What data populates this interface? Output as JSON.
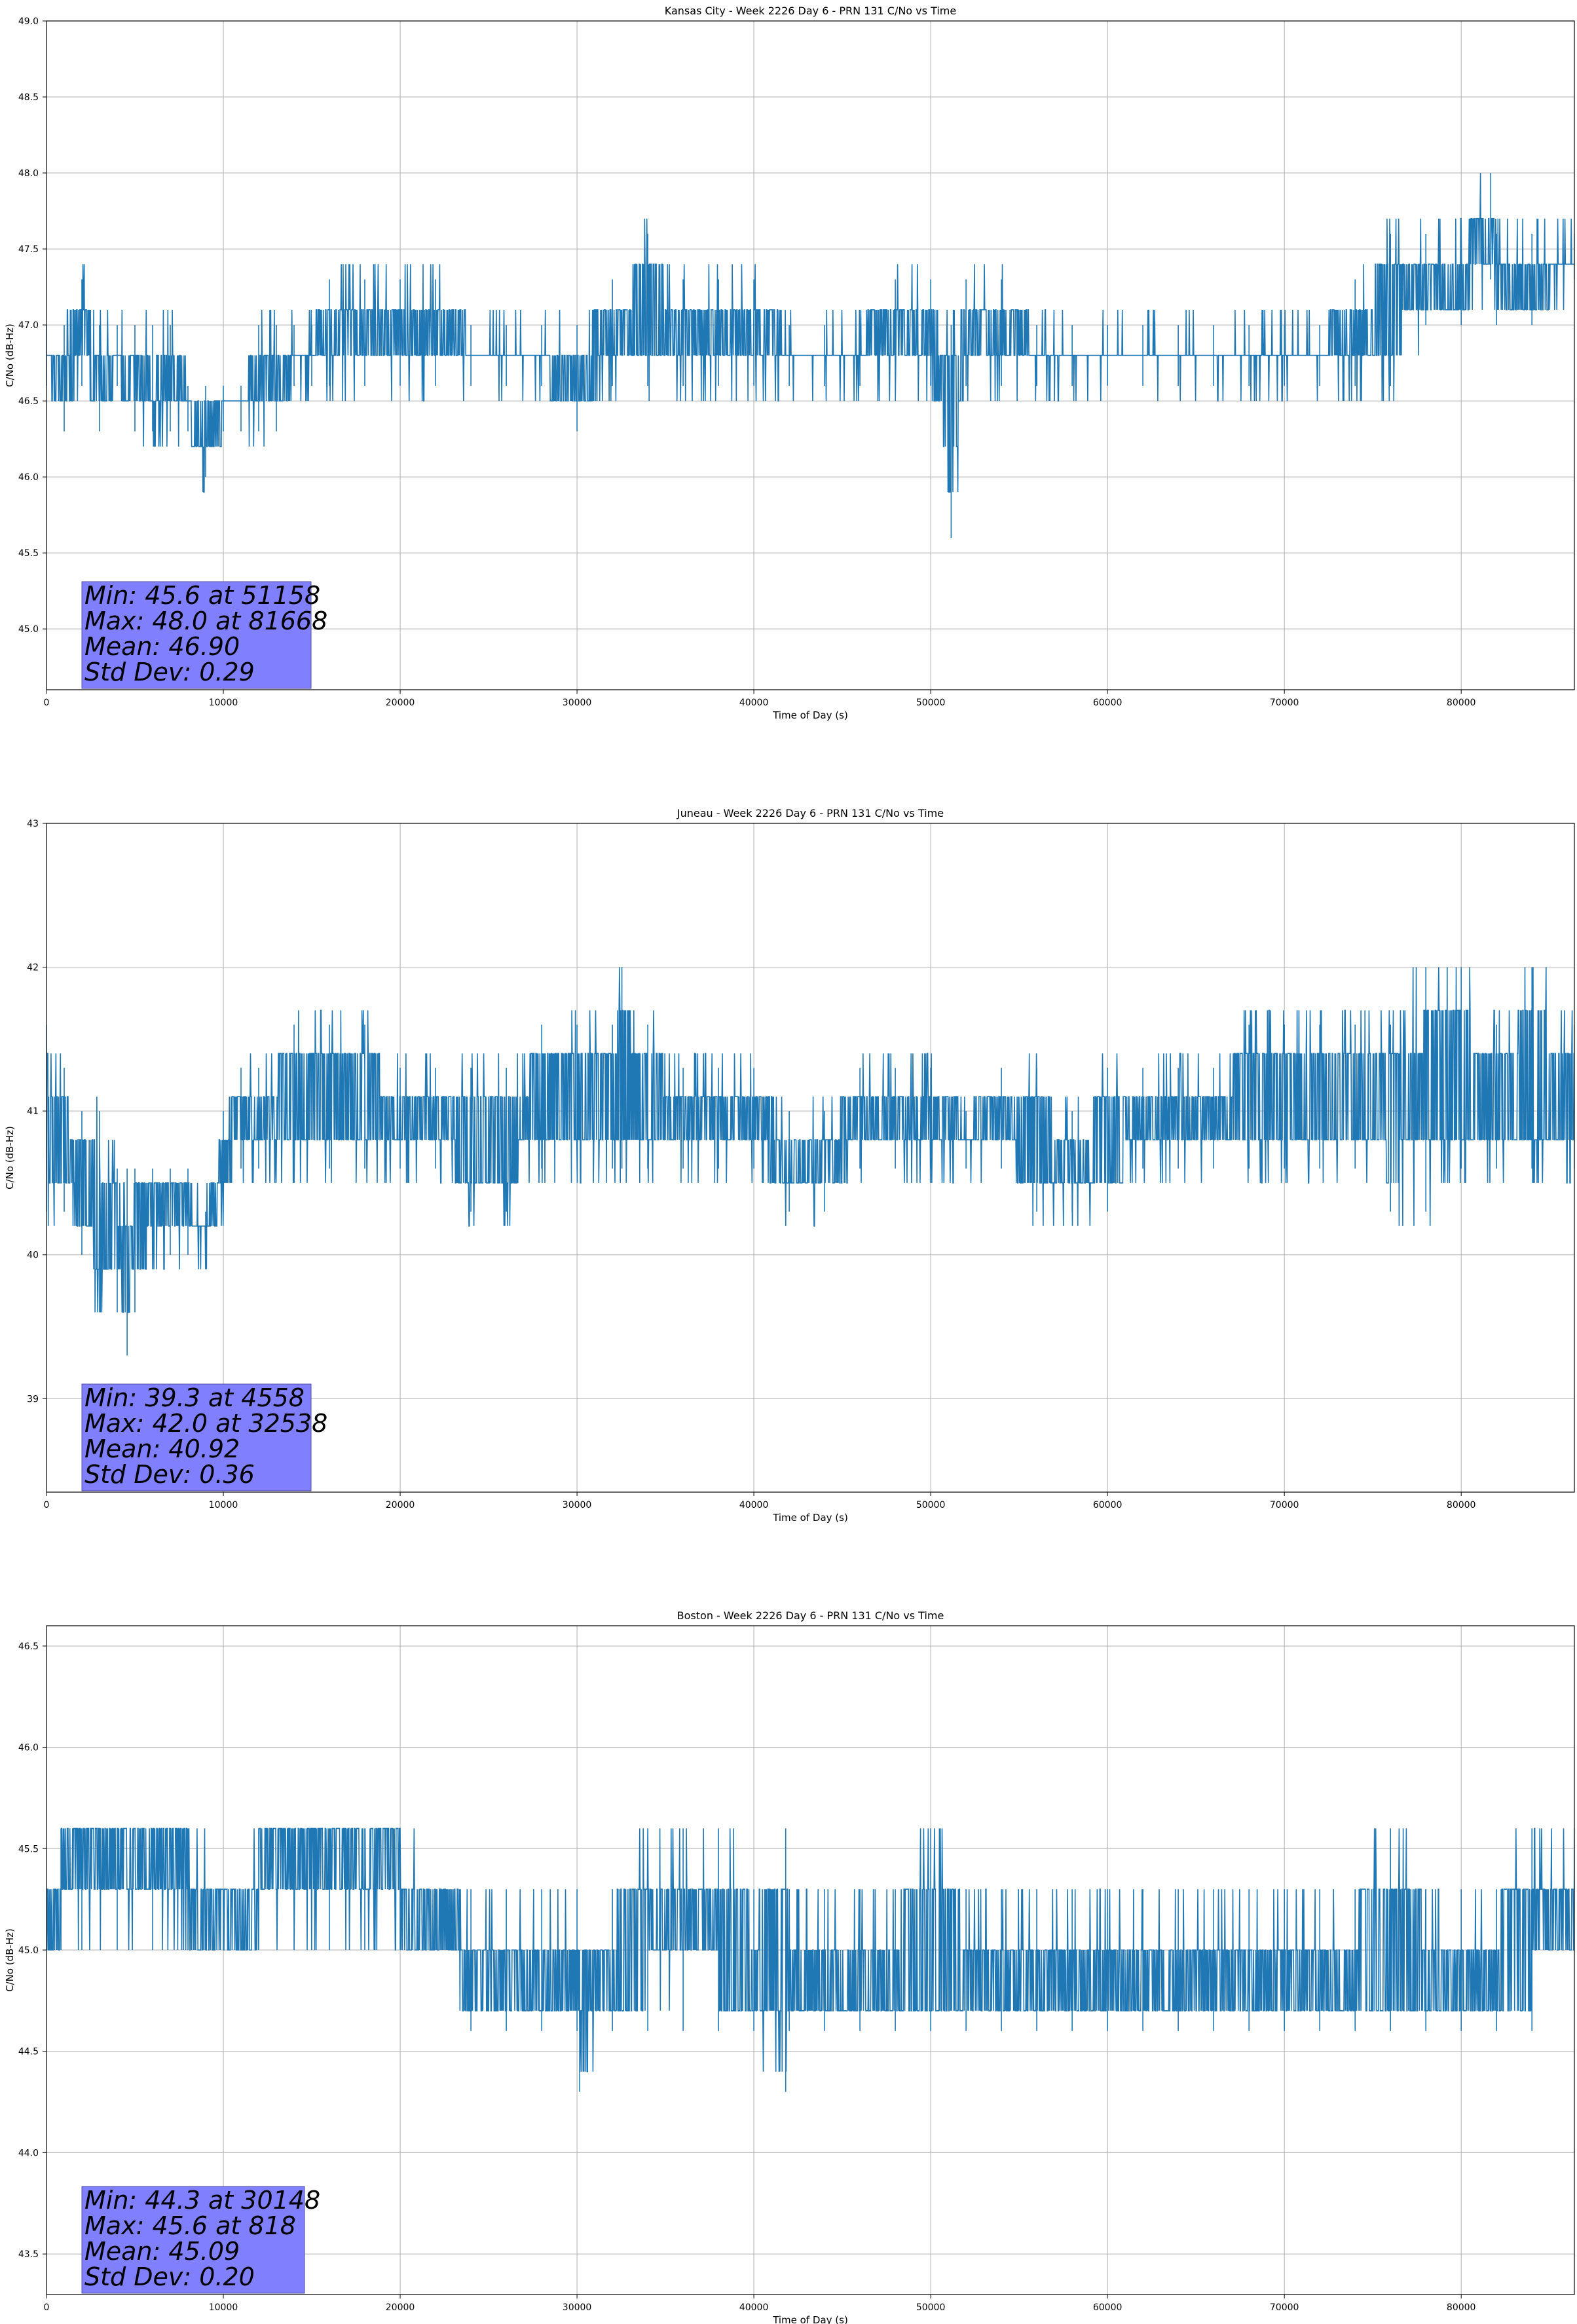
{
  "chart_data": [
    {
      "type": "line",
      "title": "Kansas City - Week 2226 Day 6 - PRN 131 C/No vs Time",
      "xlabel": "Time of Day (s)",
      "ylabel": "C/No (dB-Hz)",
      "xlim": [
        0,
        86400
      ],
      "ylim": [
        44.6,
        49.0
      ],
      "xticks": [
        0,
        10000,
        20000,
        30000,
        40000,
        50000,
        60000,
        70000,
        80000
      ],
      "yticks": [
        45.0,
        45.5,
        46.0,
        46.5,
        47.0,
        47.5,
        48.0,
        48.5,
        49.0
      ],
      "ytick_labels": [
        "45.0",
        "45.5",
        "46.0",
        "46.5",
        "47.0",
        "47.5",
        "48.0",
        "48.5",
        "49.0"
      ],
      "grid": true,
      "series_color": "#1f77b4",
      "series": [
        {
          "x": [
            0,
            1000,
            2000,
            3000,
            4000,
            5000,
            6000,
            7000,
            8000,
            9000,
            10000,
            11000,
            12000,
            13000,
            14000,
            15000,
            16000,
            18000,
            20000,
            22000,
            24000,
            26000,
            28000,
            30000,
            32000,
            34000,
            36000,
            38000,
            40000,
            42000,
            44000,
            46000,
            48000,
            50000,
            51158,
            52000,
            54000,
            56000,
            58000,
            60000,
            62000,
            64000,
            66000,
            68000,
            70000,
            72000,
            74000,
            76000,
            78000,
            80000,
            81668,
            82000,
            84000,
            86400
          ],
          "y_low": [
            46.6,
            46.3,
            46.6,
            46.3,
            46.6,
            46.3,
            46.3,
            46.3,
            46.3,
            46.0,
            46.3,
            46.3,
            46.3,
            46.3,
            46.6,
            46.6,
            46.6,
            46.6,
            46.6,
            46.6,
            46.6,
            46.6,
            46.6,
            46.3,
            46.6,
            46.6,
            46.6,
            46.6,
            46.6,
            46.6,
            46.6,
            46.6,
            46.6,
            46.6,
            45.6,
            46.6,
            46.6,
            46.6,
            46.6,
            46.6,
            46.6,
            46.6,
            46.6,
            46.6,
            46.6,
            46.6,
            46.6,
            46.6,
            47.0,
            47.0,
            47.3,
            47.0,
            47.0,
            47.3
          ],
          "y_high": [
            47.0,
            47.0,
            47.3,
            47.0,
            47.0,
            47.0,
            47.0,
            47.0,
            46.6,
            46.6,
            46.6,
            46.6,
            47.0,
            47.0,
            47.0,
            47.0,
            47.3,
            47.3,
            47.3,
            47.3,
            47.0,
            47.0,
            47.0,
            47.0,
            47.3,
            47.6,
            47.3,
            47.3,
            47.3,
            47.0,
            47.0,
            47.0,
            47.3,
            47.3,
            47.0,
            47.3,
            47.3,
            47.0,
            47.0,
            47.0,
            47.0,
            47.0,
            47.0,
            47.0,
            47.0,
            47.0,
            47.3,
            47.6,
            47.6,
            47.6,
            48.0,
            47.6,
            47.6,
            47.6
          ]
        }
      ],
      "stats": {
        "min": "Min: 45.6 at 51158",
        "max": "Max: 48.0 at 81668",
        "mean": "Mean: 46.90",
        "std": "Std Dev: 0.29"
      }
    },
    {
      "type": "line",
      "title": "Juneau - Week 2226 Day 6 - PRN 131 C/No vs Time",
      "xlabel": "Time of Day (s)",
      "ylabel": "C/No (dB-Hz)",
      "xlim": [
        0,
        86400
      ],
      "ylim": [
        38.35,
        43.0
      ],
      "xticks": [
        0,
        10000,
        20000,
        30000,
        40000,
        50000,
        60000,
        70000,
        80000
      ],
      "yticks": [
        39,
        40,
        41,
        42,
        43
      ],
      "ytick_labels": [
        "39",
        "40",
        "41",
        "42",
        "43"
      ],
      "grid": true,
      "series_color": "#1f77b4",
      "series": [
        {
          "x": [
            0,
            1000,
            2000,
            3000,
            4000,
            4558,
            5000,
            6000,
            7000,
            8000,
            9000,
            10000,
            11000,
            12000,
            14000,
            16000,
            18000,
            20000,
            22000,
            24000,
            26000,
            28000,
            30000,
            32000,
            32538,
            34000,
            36000,
            38000,
            40000,
            42000,
            44000,
            46000,
            48000,
            50000,
            52000,
            54000,
            56000,
            58000,
            60000,
            62000,
            64000,
            66000,
            68000,
            70000,
            72000,
            74000,
            76000,
            78000,
            80000,
            82000,
            84000,
            86400
          ],
          "y_low": [
            40.3,
            40.3,
            40.0,
            39.6,
            39.6,
            39.3,
            39.6,
            40.0,
            40.0,
            40.0,
            40.0,
            40.3,
            40.6,
            40.6,
            40.6,
            40.6,
            40.6,
            40.6,
            40.6,
            40.3,
            40.3,
            40.6,
            40.6,
            40.6,
            40.6,
            40.6,
            40.6,
            40.6,
            40.6,
            40.3,
            40.3,
            40.6,
            40.6,
            40.6,
            40.6,
            40.6,
            40.3,
            40.3,
            40.3,
            40.6,
            40.6,
            40.6,
            40.6,
            40.6,
            40.6,
            40.6,
            40.3,
            40.3,
            40.6,
            40.6,
            40.6,
            40.6
          ],
          "y_high": [
            41.6,
            41.3,
            41.0,
            41.0,
            40.6,
            40.6,
            40.6,
            40.6,
            40.6,
            40.6,
            40.3,
            41.0,
            41.3,
            41.3,
            41.6,
            41.6,
            41.6,
            41.3,
            41.3,
            41.3,
            41.3,
            41.6,
            41.6,
            41.6,
            42.0,
            41.6,
            41.3,
            41.3,
            41.3,
            41.0,
            41.0,
            41.3,
            41.3,
            41.3,
            41.0,
            41.3,
            41.3,
            41.0,
            41.3,
            41.3,
            41.3,
            41.3,
            41.6,
            41.6,
            41.6,
            41.6,
            41.6,
            42.0,
            42.0,
            41.6,
            42.0,
            41.6
          ]
        }
      ],
      "stats": {
        "min": "Min: 39.3 at 4558",
        "max": "Max: 42.0 at 32538",
        "mean": "Mean: 40.92",
        "std": "Std Dev: 0.36"
      }
    },
    {
      "type": "line",
      "title": "Boston - Week 2226 Day 6 - PRN 131 C/No vs Time",
      "xlabel": "Time of Day (s)",
      "ylabel": "C/No (dB-Hz)",
      "xlim": [
        0,
        86400
      ],
      "ylim": [
        43.3,
        46.6
      ],
      "xticks": [
        0,
        10000,
        20000,
        30000,
        40000,
        50000,
        60000,
        70000,
        80000
      ],
      "yticks": [
        43.5,
        44.0,
        44.5,
        45.0,
        45.5,
        46.0,
        46.5
      ],
      "ytick_labels": [
        "43.5",
        "44.0",
        "44.5",
        "45.0",
        "45.5",
        "46.0",
        "46.5"
      ],
      "grid": true,
      "series_color": "#1f77b4",
      "series": [
        {
          "x": [
            0,
            818,
            2000,
            4000,
            6000,
            8000,
            10000,
            12000,
            14000,
            16000,
            18000,
            20000,
            22000,
            24000,
            26000,
            28000,
            30000,
            30148,
            32000,
            34000,
            36000,
            38000,
            40000,
            41800,
            42000,
            44000,
            46000,
            48000,
            50000,
            52000,
            54000,
            56000,
            58000,
            60000,
            62000,
            64000,
            66000,
            68000,
            70000,
            72000,
            74000,
            76000,
            78000,
            80000,
            82000,
            84000,
            86400
          ],
          "y_low": [
            45.0,
            45.0,
            45.0,
            45.0,
            45.0,
            45.0,
            45.0,
            45.0,
            45.0,
            45.0,
            45.0,
            45.0,
            45.0,
            44.6,
            44.6,
            44.6,
            44.6,
            44.3,
            44.6,
            44.6,
            44.6,
            44.6,
            44.6,
            44.3,
            44.6,
            44.6,
            44.6,
            44.6,
            44.6,
            44.6,
            44.6,
            44.6,
            44.6,
            44.6,
            44.6,
            44.6,
            44.6,
            44.6,
            44.6,
            44.6,
            44.6,
            44.6,
            44.6,
            44.6,
            44.6,
            44.6,
            45.0
          ],
          "y_high": [
            45.3,
            45.6,
            45.6,
            45.6,
            45.6,
            45.6,
            45.3,
            45.6,
            45.6,
            45.6,
            45.6,
            45.6,
            45.3,
            45.3,
            45.3,
            45.3,
            45.3,
            45.0,
            45.3,
            45.6,
            45.6,
            45.6,
            45.3,
            45.6,
            45.3,
            45.3,
            45.3,
            45.3,
            45.6,
            45.3,
            45.3,
            45.3,
            45.3,
            45.3,
            45.3,
            45.3,
            45.3,
            45.3,
            45.3,
            45.3,
            45.3,
            45.6,
            45.3,
            45.3,
            45.3,
            45.6,
            45.6
          ]
        }
      ],
      "stats": {
        "min": "Min: 44.3 at 30148",
        "max": "Max: 45.6 at 818",
        "mean": "Mean: 45.09",
        "std": "Std Dev: 0.20"
      }
    }
  ]
}
